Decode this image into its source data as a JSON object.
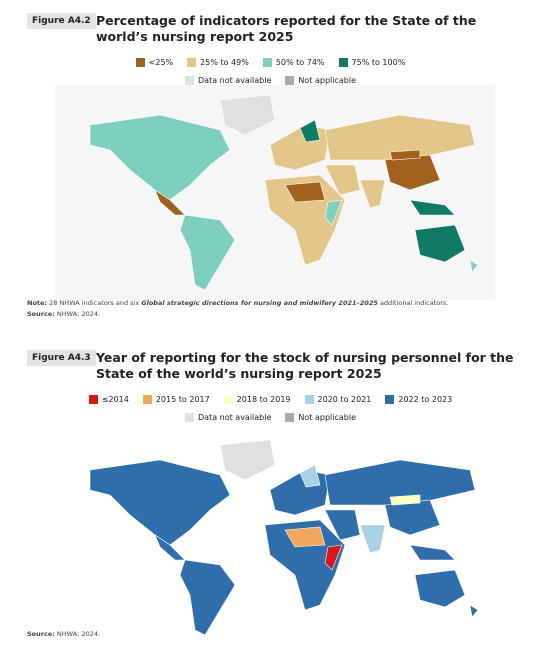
{
  "figures": [
    {
      "label": "Figure A4.2",
      "title": "Percentage of indicators reported for the State of the world’s nursing report 2025",
      "legend_rows": [
        [
          {
            "label": "<25%",
            "color": "#a0611f"
          },
          {
            "label": "25% to 49%",
            "color": "#e2c68a"
          },
          {
            "label": "50% to 74%",
            "color": "#7fcfc0"
          },
          {
            "label": "75% to 100%",
            "color": "#117a65"
          }
        ],
        [
          {
            "label": "Data not available",
            "color": "#e0e0e0"
          },
          {
            "label": "Not applicable",
            "color": "#a9a9a9"
          }
        ]
      ],
      "note": {
        "label": "Note:",
        "text": "28 NHWA indicators and six",
        "emphasis": "Global strategic directions for nursing and midwifery 2021–2025",
        "text_end": "additional indicators."
      },
      "source": {
        "label": "Source:",
        "text": "NHWA; 2024."
      }
    },
    {
      "label": "Figure A4.3",
      "title": "Year of reporting for the stock of nursing personnel for the State of the world’s nursing report 2025",
      "legend_rows": [
        [
          {
            "label": "≤2014",
            "color": "#d7191c"
          },
          {
            "label": "2015 to 2017",
            "color": "#f4a65c"
          },
          {
            "label": "2018 to 2019",
            "color": "#ffffc4"
          },
          {
            "label": "2020 to 2021",
            "color": "#abd1e6"
          },
          {
            "label": "2022 to 2023",
            "color": "#2f6eab"
          }
        ],
        [
          {
            "label": "Data not available",
            "color": "#e0e0e0"
          },
          {
            "label": "Not applicable",
            "color": "#a9a9a9"
          }
        ]
      ],
      "source": {
        "label": "Source:",
        "text": "NHWA; 2024."
      }
    }
  ]
}
